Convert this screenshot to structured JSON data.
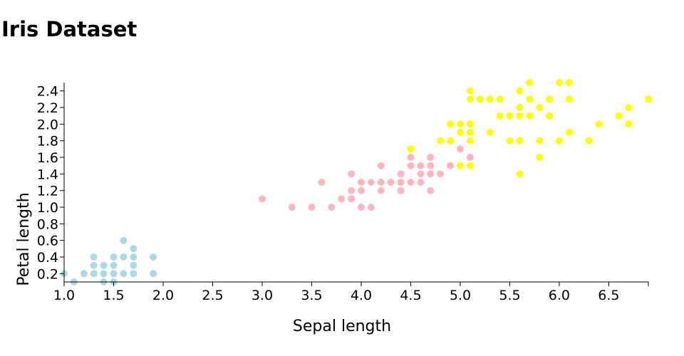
{
  "chart_data": {
    "type": "scatter",
    "title": "Iris Dataset",
    "xlabel": "Sepal length",
    "ylabel": "Petal length",
    "xlim": [
      1.0,
      6.9
    ],
    "ylim": [
      0.1,
      2.5
    ],
    "xticks": [
      "1.0",
      "1.5",
      "2.0",
      "2.5",
      "3.0",
      "3.5",
      "4.0",
      "4.5",
      "5.0",
      "5.5",
      "6.0",
      "6.5"
    ],
    "yticks": [
      "0.2",
      "0.4",
      "0.6",
      "0.8",
      "1.0",
      "1.2",
      "1.4",
      "1.6",
      "1.8",
      "2.0",
      "2.2",
      "2.4"
    ],
    "grid": false,
    "series": [
      {
        "color": "#add8e6",
        "points": [
          [
            1.0,
            0.2
          ],
          [
            1.1,
            0.1
          ],
          [
            1.2,
            0.2
          ],
          [
            1.3,
            0.2
          ],
          [
            1.3,
            0.3
          ],
          [
            1.3,
            0.4
          ],
          [
            1.4,
            0.1
          ],
          [
            1.4,
            0.2
          ],
          [
            1.4,
            0.3
          ],
          [
            1.5,
            0.1
          ],
          [
            1.5,
            0.2
          ],
          [
            1.5,
            0.3
          ],
          [
            1.5,
            0.4
          ],
          [
            1.6,
            0.2
          ],
          [
            1.6,
            0.4
          ],
          [
            1.6,
            0.6
          ],
          [
            1.7,
            0.2
          ],
          [
            1.7,
            0.3
          ],
          [
            1.7,
            0.4
          ],
          [
            1.7,
            0.5
          ],
          [
            1.9,
            0.2
          ],
          [
            1.9,
            0.4
          ]
        ]
      },
      {
        "color": "#ffb6c1",
        "points": [
          [
            3.0,
            1.1
          ],
          [
            3.3,
            1.0
          ],
          [
            3.5,
            1.0
          ],
          [
            3.6,
            1.3
          ],
          [
            3.7,
            1.0
          ],
          [
            3.8,
            1.1
          ],
          [
            3.9,
            1.1
          ],
          [
            3.9,
            1.2
          ],
          [
            3.9,
            1.4
          ],
          [
            4.0,
            1.0
          ],
          [
            4.0,
            1.2
          ],
          [
            4.0,
            1.3
          ],
          [
            4.1,
            1.0
          ],
          [
            4.1,
            1.3
          ],
          [
            4.2,
            1.2
          ],
          [
            4.2,
            1.3
          ],
          [
            4.2,
            1.5
          ],
          [
            4.3,
            1.3
          ],
          [
            4.4,
            1.2
          ],
          [
            4.4,
            1.3
          ],
          [
            4.4,
            1.4
          ],
          [
            4.5,
            1.3
          ],
          [
            4.5,
            1.5
          ],
          [
            4.5,
            1.6
          ],
          [
            4.6,
            1.3
          ],
          [
            4.6,
            1.4
          ],
          [
            4.6,
            1.5
          ],
          [
            4.7,
            1.2
          ],
          [
            4.7,
            1.4
          ],
          [
            4.7,
            1.5
          ],
          [
            4.7,
            1.6
          ],
          [
            4.8,
            1.4
          ],
          [
            4.9,
            1.5
          ],
          [
            5.0,
            1.7
          ],
          [
            5.1,
            1.6
          ]
        ]
      },
      {
        "color": "#ffff00",
        "points": [
          [
            4.5,
            1.7
          ],
          [
            4.8,
            1.8
          ],
          [
            4.9,
            1.8
          ],
          [
            4.9,
            2.0
          ],
          [
            5.0,
            1.5
          ],
          [
            5.0,
            1.9
          ],
          [
            5.0,
            2.0
          ],
          [
            5.1,
            1.5
          ],
          [
            5.1,
            1.8
          ],
          [
            5.1,
            1.9
          ],
          [
            5.1,
            2.0
          ],
          [
            5.1,
            2.3
          ],
          [
            5.1,
            2.4
          ],
          [
            5.2,
            2.3
          ],
          [
            5.3,
            1.9
          ],
          [
            5.3,
            2.3
          ],
          [
            5.4,
            2.1
          ],
          [
            5.4,
            2.3
          ],
          [
            5.5,
            1.8
          ],
          [
            5.5,
            2.1
          ],
          [
            5.6,
            1.4
          ],
          [
            5.6,
            1.8
          ],
          [
            5.6,
            2.1
          ],
          [
            5.6,
            2.2
          ],
          [
            5.6,
            2.4
          ],
          [
            5.7,
            2.1
          ],
          [
            5.7,
            2.3
          ],
          [
            5.7,
            2.5
          ],
          [
            5.8,
            1.6
          ],
          [
            5.8,
            1.8
          ],
          [
            5.8,
            2.2
          ],
          [
            5.9,
            2.1
          ],
          [
            5.9,
            2.3
          ],
          [
            6.0,
            1.8
          ],
          [
            6.0,
            2.5
          ],
          [
            6.1,
            1.9
          ],
          [
            6.1,
            2.3
          ],
          [
            6.1,
            2.5
          ],
          [
            6.3,
            1.8
          ],
          [
            6.4,
            2.0
          ],
          [
            6.6,
            2.1
          ],
          [
            6.7,
            2.0
          ],
          [
            6.7,
            2.2
          ],
          [
            6.9,
            2.3
          ]
        ]
      }
    ]
  }
}
